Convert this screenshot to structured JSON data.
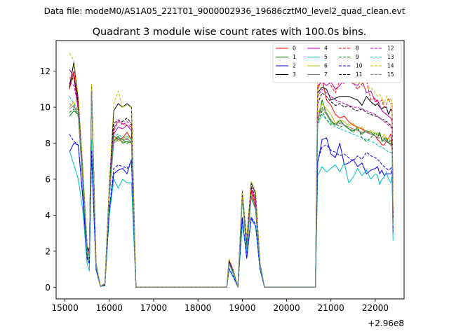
{
  "chart_data": {
    "type": "line",
    "suptitle": "Data file: modeM0/AS1A05_221T01_9000002936_19686cztM0_level2_quad_clean.evt",
    "title": "Quadrant 3 module wise count rates with 100.0s bins.",
    "xlabel": "",
    "ylabel": "",
    "x_offset_label": "+2.96e8",
    "x_ticks": [
      "15000",
      "16000",
      "17000",
      "18000",
      "19000",
      "20000",
      "21000",
      "22000"
    ],
    "y_ticks": [
      "0",
      "2",
      "4",
      "6",
      "8",
      "10",
      "12"
    ],
    "xlim": [
      14800,
      22650
    ],
    "ylim": [
      -0.65,
      13.7
    ],
    "legend": {
      "position": "top-right",
      "columns": 4
    },
    "series": [
      {
        "name": "0",
        "color": "#ff0000",
        "dash": "solid",
        "values": [
          11.0,
          12.0,
          10.0,
          6.3,
          2.0,
          1.8,
          11.1,
          1.3,
          0.05,
          0.15,
          5.5,
          8.4,
          8.2,
          8.3,
          8.6,
          8.2,
          0.0,
          0.0,
          0.0,
          0.0,
          1.35,
          0.8,
          0.0,
          5.1,
          2.1,
          5.3,
          4.5,
          1.2,
          0.0,
          0.0,
          0.0,
          11.0,
          11.6,
          10.4,
          10.1,
          9.6,
          9.4,
          9.5,
          9.2,
          9.0,
          8.9,
          8.8,
          8.6,
          8.5,
          8.4,
          8.2,
          8.1,
          7.9,
          7.9,
          8.1,
          8.3,
          8.5,
          7.6,
          3.8
        ]
      },
      {
        "name": "1",
        "color": "#008000",
        "dash": "solid",
        "values": [
          9.5,
          9.8,
          9.6,
          5.8,
          1.7,
          1.5,
          10.8,
          1.2,
          0.05,
          0.2,
          5.0,
          8.1,
          8.4,
          8.0,
          8.1,
          8.0,
          0.0,
          0.0,
          0.0,
          0.0,
          1.3,
          0.75,
          0.0,
          5.0,
          2.0,
          5.0,
          4.3,
          1.2,
          0.0,
          0.0,
          0.0,
          9.2,
          10.4,
          9.6,
          9.2,
          9.0,
          9.3,
          9.0,
          8.8,
          8.7,
          8.8,
          8.5,
          8.7,
          8.6,
          8.4,
          8.3,
          8.6,
          8.1,
          8.2,
          8.3,
          8.0,
          8.0,
          7.8,
          3.6
        ]
      },
      {
        "name": "2",
        "color": "#0000ff",
        "dash": "solid",
        "values": [
          7.5,
          8.0,
          7.9,
          5.0,
          1.6,
          1.3,
          7.4,
          1.0,
          0.04,
          0.1,
          4.2,
          6.3,
          6.5,
          6.6,
          6.3,
          7.1,
          0.0,
          0.0,
          0.0,
          0.0,
          1.0,
          0.55,
          0.0,
          3.8,
          1.6,
          3.8,
          3.4,
          1.0,
          0.0,
          0.0,
          0.0,
          6.9,
          8.2,
          8.3,
          7.4,
          7.2,
          8.0,
          6.8,
          6.9,
          7.1,
          6.7,
          6.9,
          6.3,
          6.5,
          6.6,
          6.7,
          6.3,
          6.5,
          6.2,
          6.3,
          6.3,
          6.3,
          6.5,
          3.0
        ]
      },
      {
        "name": "3",
        "color": "#000000",
        "dash": "solid",
        "values": [
          11.1,
          12.5,
          10.4,
          6.6,
          2.3,
          2.0,
          11.2,
          1.3,
          0.05,
          0.2,
          5.6,
          9.8,
          10.2,
          10.0,
          10.2,
          10.0,
          0.0,
          0.0,
          0.0,
          0.0,
          1.5,
          0.9,
          0.0,
          5.3,
          2.6,
          5.8,
          5.2,
          1.3,
          0.0,
          0.0,
          0.0,
          10.8,
          11.1,
          11.0,
          10.4,
          10.5,
          10.6,
          10.6,
          10.6,
          10.5,
          10.4,
          10.1,
          10.6,
          10.3,
          10.1,
          10.2,
          10.0,
          9.9,
          10.0,
          10.0,
          9.6,
          9.9,
          9.8,
          3.8
        ]
      },
      {
        "name": "4",
        "color": "#bf00bf",
        "dash": "solid",
        "values": [
          12.1,
          11.7,
          9.8,
          6.3,
          2.1,
          1.9,
          10.9,
          1.3,
          0.05,
          0.2,
          5.3,
          8.5,
          8.9,
          8.8,
          9.0,
          8.7,
          0.0,
          0.0,
          0.0,
          0.0,
          1.35,
          0.8,
          0.0,
          5.2,
          2.4,
          5.5,
          4.8,
          1.2,
          0.0,
          0.0,
          0.0,
          11.2,
          11.4,
          11.2,
          11.4,
          11.0,
          11.2,
          11.6,
          11.5,
          11.3,
          11.2,
          11.5,
          10.8,
          10.9,
          10.3,
          10.4,
          10.1,
          9.8,
          9.7,
          9.6,
          9.5,
          9.4,
          9.2,
          4.2
        ]
      },
      {
        "name": "5",
        "color": "#00bfbf",
        "dash": "solid",
        "values": [
          7.6,
          6.8,
          6.0,
          4.3,
          1.3,
          0.9,
          8.2,
          1.0,
          0.04,
          0.1,
          4.0,
          6.0,
          5.5,
          6.0,
          5.8,
          5.8,
          0.0,
          0.0,
          0.0,
          0.0,
          1.0,
          0.55,
          0.0,
          3.5,
          1.8,
          3.9,
          3.4,
          1.0,
          0.0,
          0.0,
          0.0,
          6.2,
          6.7,
          6.4,
          6.6,
          6.8,
          6.4,
          6.9,
          5.8,
          6.1,
          6.6,
          6.2,
          6.5,
          6.0,
          6.3,
          6.2,
          5.7,
          6.0,
          6.1,
          6.4,
          6.0,
          5.8,
          6.2,
          2.6
        ]
      },
      {
        "name": "6",
        "color": "#bfbf00",
        "dash": "solid",
        "values": [
          10.0,
          10.3,
          9.8,
          6.2,
          2.0,
          1.8,
          10.7,
          1.3,
          0.05,
          0.2,
          5.2,
          8.3,
          8.1,
          8.2,
          8.4,
          8.2,
          0.0,
          0.0,
          0.0,
          0.0,
          1.3,
          0.8,
          0.0,
          5.0,
          2.1,
          5.0,
          4.4,
          1.2,
          0.0,
          0.0,
          0.0,
          9.6,
          10.2,
          9.9,
          9.6,
          9.1,
          9.3,
          9.2,
          9.0,
          9.1,
          8.8,
          8.9,
          8.6,
          8.7,
          8.5,
          8.6,
          8.4,
          8.3,
          8.5,
          8.2,
          8.3,
          8.1,
          8.0,
          3.7
        ]
      },
      {
        "name": "7",
        "color": "#808080",
        "dash": "solid",
        "values": [
          9.9,
          10.1,
          9.6,
          6.0,
          1.9,
          1.7,
          10.8,
          1.2,
          0.05,
          0.2,
          5.1,
          8.0,
          8.2,
          8.1,
          8.3,
          8.0,
          0.0,
          0.0,
          0.0,
          0.0,
          1.3,
          0.8,
          0.0,
          5.0,
          2.0,
          5.1,
          4.4,
          1.2,
          0.0,
          0.0,
          0.0,
          9.4,
          10.0,
          9.7,
          9.3,
          9.0,
          9.2,
          9.0,
          8.9,
          8.8,
          8.7,
          8.6,
          8.7,
          8.5,
          8.4,
          8.3,
          8.5,
          8.2,
          8.1,
          8.2,
          8.0,
          7.9,
          7.8,
          3.5
        ]
      },
      {
        "name": "8",
        "color": "#ff0000",
        "dash": "dashed",
        "values": [
          11.6,
          11.8,
          10.2,
          6.5,
          2.1,
          1.9,
          11.0,
          1.3,
          0.05,
          0.2,
          5.5,
          8.7,
          9.2,
          9.1,
          9.0,
          8.9,
          0.0,
          0.0,
          0.0,
          0.0,
          1.4,
          0.85,
          0.0,
          5.2,
          2.3,
          5.4,
          4.7,
          1.2,
          0.0,
          0.0,
          0.0,
          11.4,
          12.0,
          11.6,
          11.2,
          10.8,
          11.5,
          11.3,
          11.6,
          11.4,
          11.0,
          11.3,
          11.5,
          10.4,
          10.5,
          10.2,
          10.3,
          10.4,
          10.0,
          10.1,
          10.5,
          10.2,
          10.2,
          4.1
        ]
      },
      {
        "name": "9",
        "color": "#008000",
        "dash": "dashed",
        "values": [
          9.7,
          9.9,
          9.5,
          5.9,
          1.8,
          1.6,
          10.9,
          1.2,
          0.05,
          0.2,
          5.1,
          8.2,
          8.3,
          8.2,
          8.0,
          8.1,
          0.0,
          0.0,
          0.0,
          0.0,
          1.3,
          0.8,
          0.0,
          5.0,
          2.0,
          5.0,
          4.3,
          1.2,
          0.0,
          0.0,
          0.0,
          9.1,
          9.8,
          9.3,
          9.0,
          9.1,
          8.9,
          9.0,
          8.8,
          8.6,
          8.9,
          8.3,
          8.1,
          8.3,
          8.6,
          8.4,
          8.6,
          8.2,
          8.3,
          8.1,
          8.0,
          8.2,
          7.9,
          3.6
        ]
      },
      {
        "name": "10",
        "color": "#0000ff",
        "dash": "dashed",
        "values": [
          8.5,
          8.1,
          7.9,
          5.1,
          1.6,
          1.3,
          7.6,
          1.0,
          0.04,
          0.1,
          4.3,
          6.6,
          6.8,
          6.7,
          6.6,
          7.0,
          0.0,
          0.0,
          0.0,
          0.0,
          1.05,
          0.6,
          0.0,
          3.9,
          1.6,
          3.9,
          3.5,
          1.0,
          0.0,
          0.0,
          0.0,
          7.0,
          7.8,
          7.9,
          7.6,
          7.5,
          7.3,
          7.4,
          7.2,
          7.0,
          7.3,
          7.1,
          7.5,
          7.3,
          7.2,
          7.1,
          7.0,
          6.8,
          6.7,
          6.6,
          6.5,
          6.6,
          6.7,
          3.1
        ]
      },
      {
        "name": "11",
        "color": "#000000",
        "dash": "dashed",
        "values": [
          11.3,
          11.7,
          10.2,
          6.4,
          2.2,
          2.0,
          11.1,
          1.3,
          0.05,
          0.2,
          5.5,
          9.1,
          9.3,
          9.2,
          9.4,
          9.1,
          0.0,
          0.0,
          0.0,
          0.0,
          1.45,
          0.85,
          0.0,
          5.2,
          2.5,
          5.6,
          5.0,
          1.3,
          0.0,
          0.0,
          0.0,
          10.2,
          10.8,
          10.6,
          10.3,
          10.1,
          10.2,
          10.0,
          10.1,
          9.9,
          9.8,
          9.9,
          9.7,
          9.6,
          9.5,
          9.5,
          9.4,
          9.3,
          9.3,
          9.2,
          9.1,
          9.0,
          8.9,
          3.9
        ]
      },
      {
        "name": "12",
        "color": "#bf00bf",
        "dash": "dashed",
        "values": [
          11.4,
          11.2,
          10.0,
          6.4,
          2.1,
          1.9,
          11.0,
          1.3,
          0.05,
          0.2,
          5.4,
          8.8,
          9.3,
          9.0,
          9.2,
          9.0,
          0.0,
          0.0,
          0.0,
          0.0,
          1.4,
          0.85,
          0.0,
          5.2,
          2.4,
          5.5,
          4.8,
          1.2,
          0.0,
          0.0,
          0.0,
          10.6,
          11.0,
          10.8,
          10.6,
          10.4,
          10.3,
          10.2,
          10.1,
          10.0,
          10.0,
          9.9,
          9.8,
          9.7,
          9.6,
          9.5,
          9.4,
          9.3,
          9.2,
          9.1,
          9.0,
          8.9,
          8.8,
          4.0
        ]
      },
      {
        "name": "13",
        "color": "#00bfbf",
        "dash": "dashed",
        "values": [
          10.6,
          10.2,
          9.7,
          6.1,
          2.0,
          1.7,
          10.8,
          1.2,
          0.05,
          0.2,
          5.2,
          8.4,
          8.5,
          8.3,
          8.4,
          8.2,
          0.0,
          0.0,
          0.0,
          0.0,
          1.3,
          0.8,
          0.0,
          5.0,
          2.1,
          5.1,
          4.4,
          1.2,
          0.0,
          0.0,
          0.0,
          9.0,
          9.6,
          9.3,
          9.1,
          8.9,
          8.8,
          8.7,
          8.6,
          8.5,
          8.4,
          8.3,
          8.2,
          8.1,
          8.0,
          7.9,
          7.8,
          7.8,
          7.7,
          7.6,
          7.5,
          7.5,
          7.4,
          3.4
        ]
      },
      {
        "name": "14",
        "color": "#bfbf00",
        "dash": "dashed",
        "values": [
          13.0,
          12.6,
          10.6,
          6.8,
          2.3,
          2.1,
          11.3,
          1.4,
          0.05,
          0.2,
          5.8,
          10.2,
          10.9,
          10.0,
          10.1,
          10.0,
          0.0,
          0.0,
          0.0,
          0.0,
          1.6,
          0.95,
          0.0,
          5.4,
          2.7,
          5.9,
          5.3,
          1.3,
          0.0,
          0.0,
          0.0,
          11.8,
          12.8,
          12.4,
          11.9,
          11.6,
          11.8,
          11.5,
          11.7,
          11.3,
          11.4,
          11.2,
          11.0,
          11.1,
          10.8,
          10.6,
          10.7,
          10.5,
          10.2,
          10.6,
          10.3,
          10.5,
          10.3,
          4.3
        ]
      },
      {
        "name": "15",
        "color": "#808080",
        "dash": "dashed",
        "values": [
          10.2,
          10.0,
          9.6,
          6.0,
          1.9,
          1.7,
          10.8,
          1.2,
          0.05,
          0.2,
          5.1,
          8.1,
          8.3,
          8.2,
          8.2,
          8.1,
          0.0,
          0.0,
          0.0,
          0.0,
          1.3,
          0.8,
          0.0,
          5.0,
          2.0,
          5.0,
          4.3,
          1.2,
          0.0,
          0.0,
          0.0,
          9.3,
          9.9,
          9.6,
          9.3,
          9.0,
          9.1,
          9.0,
          8.9,
          8.8,
          8.7,
          8.6,
          8.6,
          8.5,
          8.4,
          8.3,
          8.3,
          8.2,
          8.1,
          8.1,
          8.0,
          7.9,
          7.8,
          3.5
        ]
      }
    ],
    "x": [
      15100,
      15200,
      15300,
      15400,
      15500,
      15550,
      15600,
      15700,
      15800,
      15900,
      16000,
      16100,
      16200,
      16300,
      16400,
      16500,
      16600,
      17000,
      18000,
      18650,
      18700,
      18800,
      18900,
      19000,
      19100,
      19200,
      19300,
      19400,
      19500,
      19600,
      20650,
      20700,
      20800,
      20900,
      21000,
      21100,
      21200,
      21300,
      21400,
      21500,
      21600,
      21700,
      21800,
      21900,
      22000,
      22050,
      22100,
      22150,
      22200,
      22250,
      22300,
      22350,
      22380,
      22400
    ]
  }
}
